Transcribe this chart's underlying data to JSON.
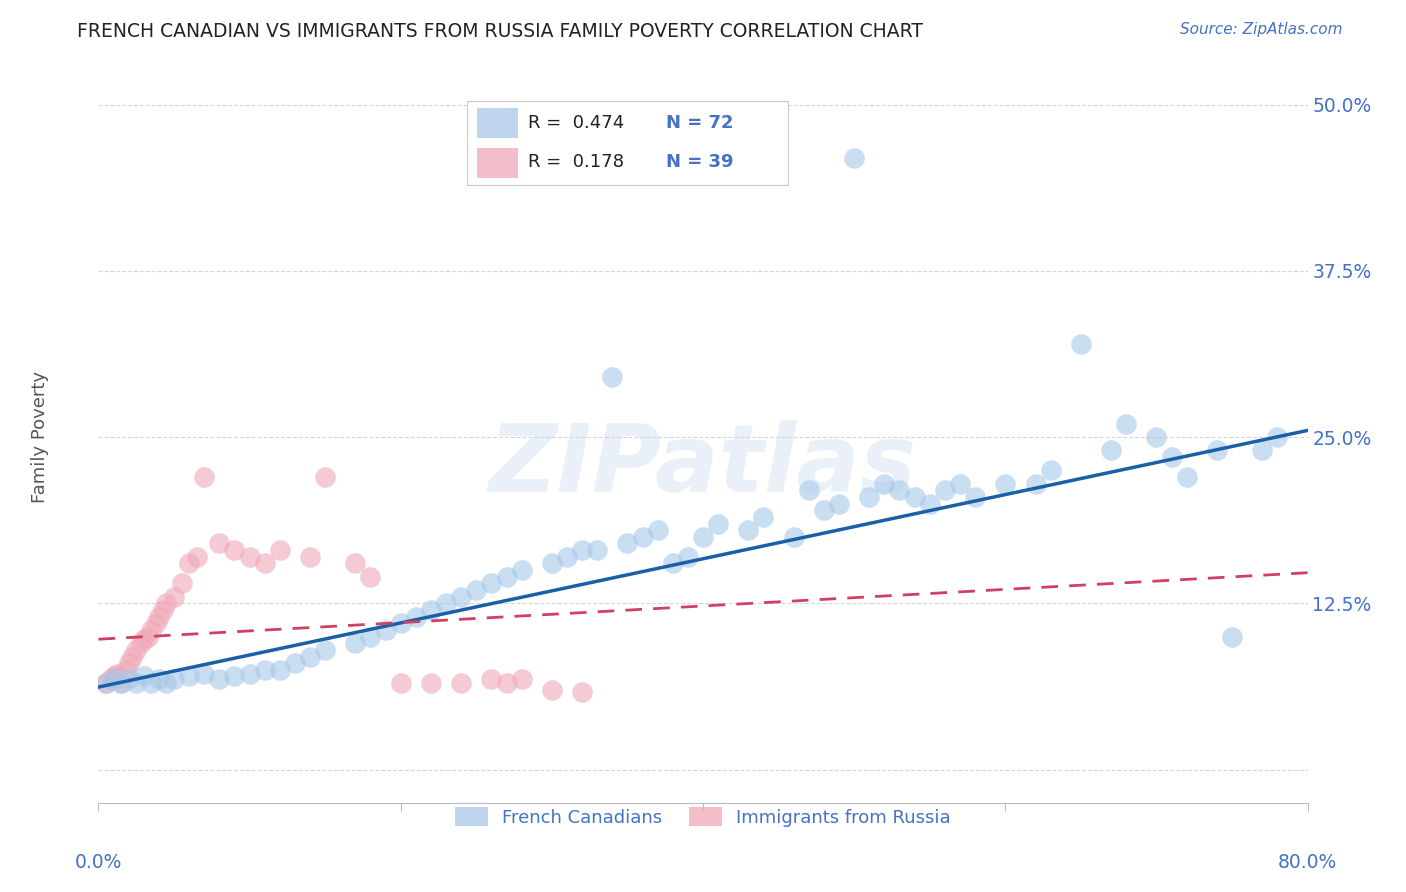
{
  "title": "FRENCH CANADIAN VS IMMIGRANTS FROM RUSSIA FAMILY POVERTY CORRELATION CHART",
  "source": "Source: ZipAtlas.com",
  "ylabel": "Family Poverty",
  "yticks": [
    0.0,
    0.125,
    0.25,
    0.375,
    0.5
  ],
  "ytick_labels": [
    "",
    "12.5%",
    "25.0%",
    "37.5%",
    "50.0%"
  ],
  "xlim": [
    0.0,
    0.8
  ],
  "ylim": [
    -0.025,
    0.525
  ],
  "watermark": "ZIPatlas",
  "legend_r1": "0.474",
  "legend_n1": "72",
  "legend_r2": "0.178",
  "legend_n2": "39",
  "color_blue": "#A8C8E8",
  "color_pink": "#F0A8B8",
  "line_blue": "#1A5FA8",
  "line_pink": "#D04060",
  "label_blue": "French Canadians",
  "label_pink": "Immigrants from Russia",
  "title_color": "#222222",
  "axis_label_color": "#4472C4",
  "background_color": "#FFFFFF",
  "grid_color": "#CCCCCC",
  "blue_x": [
    0.005,
    0.01,
    0.015,
    0.02,
    0.025,
    0.03,
    0.035,
    0.04,
    0.045,
    0.05,
    0.06,
    0.07,
    0.08,
    0.09,
    0.1,
    0.11,
    0.12,
    0.13,
    0.14,
    0.15,
    0.17,
    0.18,
    0.19,
    0.2,
    0.21,
    0.22,
    0.23,
    0.24,
    0.25,
    0.26,
    0.27,
    0.28,
    0.3,
    0.31,
    0.32,
    0.33,
    0.34,
    0.35,
    0.36,
    0.37,
    0.38,
    0.39,
    0.4,
    0.41,
    0.43,
    0.44,
    0.46,
    0.47,
    0.48,
    0.49,
    0.5,
    0.51,
    0.52,
    0.53,
    0.54,
    0.55,
    0.56,
    0.57,
    0.58,
    0.6,
    0.62,
    0.63,
    0.65,
    0.67,
    0.68,
    0.7,
    0.71,
    0.72,
    0.74,
    0.75,
    0.77,
    0.78
  ],
  "blue_y": [
    0.065,
    0.068,
    0.065,
    0.068,
    0.065,
    0.07,
    0.065,
    0.068,
    0.065,
    0.068,
    0.07,
    0.072,
    0.068,
    0.07,
    0.072,
    0.075,
    0.075,
    0.08,
    0.085,
    0.09,
    0.095,
    0.1,
    0.105,
    0.11,
    0.115,
    0.12,
    0.125,
    0.13,
    0.135,
    0.14,
    0.145,
    0.15,
    0.155,
    0.16,
    0.165,
    0.165,
    0.295,
    0.17,
    0.175,
    0.18,
    0.155,
    0.16,
    0.175,
    0.185,
    0.18,
    0.19,
    0.175,
    0.21,
    0.195,
    0.2,
    0.46,
    0.205,
    0.215,
    0.21,
    0.205,
    0.2,
    0.21,
    0.215,
    0.205,
    0.215,
    0.215,
    0.225,
    0.32,
    0.24,
    0.26,
    0.25,
    0.235,
    0.22,
    0.24,
    0.1,
    0.24,
    0.25
  ],
  "pink_x": [
    0.005,
    0.008,
    0.01,
    0.012,
    0.015,
    0.018,
    0.02,
    0.022,
    0.025,
    0.028,
    0.03,
    0.033,
    0.035,
    0.038,
    0.04,
    0.043,
    0.045,
    0.05,
    0.055,
    0.06,
    0.065,
    0.07,
    0.08,
    0.09,
    0.1,
    0.11,
    0.12,
    0.14,
    0.15,
    0.17,
    0.18,
    0.2,
    0.22,
    0.24,
    0.26,
    0.27,
    0.28,
    0.3,
    0.32
  ],
  "pink_y": [
    0.065,
    0.068,
    0.07,
    0.072,
    0.065,
    0.075,
    0.08,
    0.085,
    0.09,
    0.095,
    0.098,
    0.1,
    0.105,
    0.11,
    0.115,
    0.12,
    0.125,
    0.13,
    0.14,
    0.155,
    0.16,
    0.22,
    0.17,
    0.165,
    0.16,
    0.155,
    0.165,
    0.16,
    0.22,
    0.155,
    0.145,
    0.065,
    0.065,
    0.065,
    0.068,
    0.065,
    0.068,
    0.06,
    0.058
  ],
  "blue_trend_x": [
    0.0,
    0.8
  ],
  "blue_trend_y": [
    0.062,
    0.255
  ],
  "pink_trend_x": [
    0.0,
    0.8
  ],
  "pink_trend_y": [
    0.098,
    0.148
  ]
}
